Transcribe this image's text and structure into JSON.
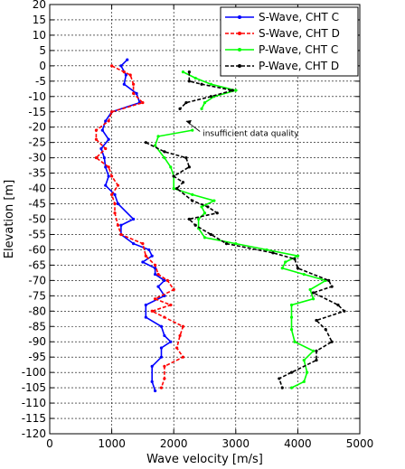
{
  "chart_data": {
    "type": "line",
    "xlabel": "Wave velocity [m/s]",
    "ylabel": "Elevation [m]",
    "xlim": [
      0,
      5000
    ],
    "ylim": [
      -120,
      20
    ],
    "xticks": [
      "0",
      "1000",
      "2000",
      "3000",
      "4000",
      "5000"
    ],
    "yticks": [
      "20",
      "15",
      "10",
      "5",
      "0",
      "-5",
      "-10",
      "-15",
      "-20",
      "-25",
      "-30",
      "-35",
      "-40",
      "-45",
      "-50",
      "-55",
      "-60",
      "-65",
      "-70",
      "-75",
      "-80",
      "-85",
      "-90",
      "-95",
      "-100",
      "-105",
      "-110",
      "-115",
      "-120"
    ],
    "grid": true,
    "legend_position": "top-right",
    "annotation": {
      "text": "insufficient data quality",
      "x": 2350,
      "y": -22,
      "arrow_to": [
        2200,
        -18
      ]
    },
    "series": [
      {
        "name": "S-Wave, CHT C",
        "color": "#0000ff",
        "style": "solid",
        "marker": "dot",
        "points": [
          [
            1250,
            2
          ],
          [
            1150,
            0
          ],
          [
            1230,
            -3
          ],
          [
            1200,
            -6
          ],
          [
            1400,
            -9
          ],
          [
            1450,
            -12
          ],
          [
            1000,
            -15
          ],
          [
            900,
            -18
          ],
          [
            850,
            -21
          ],
          [
            950,
            -24
          ],
          [
            830,
            -27
          ],
          [
            880,
            -30
          ],
          [
            900,
            -33
          ],
          [
            950,
            -36
          ],
          [
            900,
            -39
          ],
          [
            1050,
            -42
          ],
          [
            1100,
            -45
          ],
          [
            1350,
            -50
          ],
          [
            1150,
            -52
          ],
          [
            1150,
            -55
          ],
          [
            1350,
            -58
          ],
          [
            1600,
            -60
          ],
          [
            1650,
            -62
          ],
          [
            1500,
            -64
          ],
          [
            1700,
            -66
          ],
          [
            1700,
            -68
          ],
          [
            1850,
            -70
          ],
          [
            1750,
            -72
          ],
          [
            1850,
            -75
          ],
          [
            1550,
            -78
          ],
          [
            1550,
            -82
          ],
          [
            1800,
            -85
          ],
          [
            1850,
            -88
          ],
          [
            1950,
            -90
          ],
          [
            1800,
            -92
          ],
          [
            1800,
            -95
          ],
          [
            1650,
            -98
          ],
          [
            1650,
            -103
          ],
          [
            1700,
            -106
          ]
        ]
      },
      {
        "name": "S-Wave, CHT D",
        "color": "#ff0000",
        "style": "dashed",
        "marker": "dot",
        "points": [
          [
            1000,
            0
          ],
          [
            1200,
            -2
          ],
          [
            1300,
            -3
          ],
          [
            1350,
            -6
          ],
          [
            1350,
            -9
          ],
          [
            1500,
            -12
          ],
          [
            1000,
            -15
          ],
          [
            950,
            -18
          ],
          [
            750,
            -21
          ],
          [
            750,
            -24
          ],
          [
            900,
            -27
          ],
          [
            750,
            -30
          ],
          [
            950,
            -33
          ],
          [
            1000,
            -36
          ],
          [
            1100,
            -39
          ],
          [
            1000,
            -42
          ],
          [
            1050,
            -45
          ],
          [
            1050,
            -48
          ],
          [
            1100,
            -52
          ],
          [
            1150,
            -55
          ],
          [
            1500,
            -58
          ],
          [
            1550,
            -62
          ],
          [
            1700,
            -65
          ],
          [
            1750,
            -68
          ],
          [
            1900,
            -70
          ],
          [
            2000,
            -73
          ],
          [
            1700,
            -76
          ],
          [
            1950,
            -78
          ],
          [
            1650,
            -80
          ],
          [
            1850,
            -82
          ],
          [
            2150,
            -85
          ],
          [
            2100,
            -88
          ],
          [
            2050,
            -92
          ],
          [
            2150,
            -95
          ],
          [
            1850,
            -98
          ],
          [
            1850,
            -102
          ],
          [
            1800,
            -105
          ]
        ]
      },
      {
        "name": "P-Wave, CHT C",
        "color": "#00ff00",
        "style": "solid",
        "marker": "dot",
        "points": [
          [
            2150,
            -2
          ],
          [
            2350,
            -4
          ],
          [
            2600,
            -6
          ],
          [
            3000,
            -8
          ],
          [
            2650,
            -10
          ],
          [
            2500,
            -12
          ],
          [
            2450,
            -14
          ],
          [
            null,
            null
          ],
          [
            2300,
            -21
          ],
          [
            1750,
            -23
          ],
          [
            1700,
            -26
          ],
          [
            1850,
            -30
          ],
          [
            1950,
            -33
          ],
          [
            2000,
            -36
          ],
          [
            2000,
            -40
          ],
          [
            2300,
            -42
          ],
          [
            2650,
            -44
          ],
          [
            2450,
            -46
          ],
          [
            2500,
            -48
          ],
          [
            2400,
            -50
          ],
          [
            2400,
            -53
          ],
          [
            2500,
            -56
          ],
          [
            3000,
            -58
          ],
          [
            3500,
            -60
          ],
          [
            4000,
            -62
          ],
          [
            3800,
            -64
          ],
          [
            3750,
            -66
          ],
          [
            4100,
            -68
          ],
          [
            4450,
            -70
          ],
          [
            4200,
            -73
          ],
          [
            4250,
            -76
          ],
          [
            3900,
            -78
          ],
          [
            3900,
            -82
          ],
          [
            3900,
            -86
          ],
          [
            3950,
            -90
          ],
          [
            4250,
            -93
          ],
          [
            4100,
            -96
          ],
          [
            4150,
            -100
          ],
          [
            4100,
            -103
          ],
          [
            3900,
            -105
          ]
        ]
      },
      {
        "name": "P-Wave, CHT D",
        "color": "#000000",
        "style": "dashed",
        "marker": "dot",
        "points": [
          [
            2250,
            -2
          ],
          [
            2250,
            -5
          ],
          [
            2450,
            -6
          ],
          [
            2950,
            -8
          ],
          [
            2600,
            -10
          ],
          [
            2200,
            -12
          ],
          [
            2100,
            -14
          ],
          [
            null,
            null
          ],
          [
            1550,
            -25
          ],
          [
            1850,
            -28
          ],
          [
            2200,
            -30
          ],
          [
            2250,
            -33
          ],
          [
            2000,
            -36
          ],
          [
            2150,
            -38
          ],
          [
            2050,
            -40
          ],
          [
            2300,
            -44
          ],
          [
            2550,
            -46
          ],
          [
            2700,
            -48
          ],
          [
            2250,
            -50
          ],
          [
            2350,
            -52
          ],
          [
            2600,
            -55
          ],
          [
            2850,
            -58
          ],
          [
            3600,
            -61
          ],
          [
            3950,
            -63
          ],
          [
            4000,
            -66
          ],
          [
            4500,
            -70
          ],
          [
            4550,
            -72
          ],
          [
            4250,
            -74
          ],
          [
            4650,
            -78
          ],
          [
            4750,
            -80
          ],
          [
            4300,
            -83
          ],
          [
            4450,
            -86
          ],
          [
            4550,
            -90
          ],
          [
            4300,
            -93
          ],
          [
            4300,
            -96
          ],
          [
            3900,
            -100
          ],
          [
            3700,
            -102
          ],
          [
            3750,
            -105
          ]
        ]
      }
    ]
  }
}
